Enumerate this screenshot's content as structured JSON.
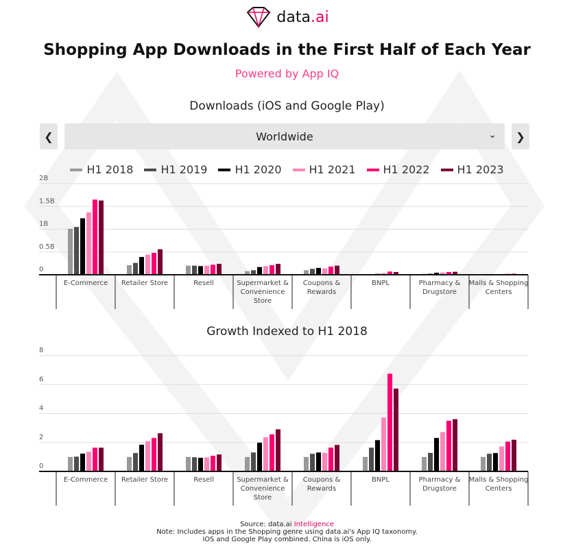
{
  "brand": {
    "name": "data",
    "suffix": ".ai"
  },
  "title": "Shopping App Downloads in the First Half of Each Year",
  "subtitle": "Powered by App IQ",
  "selector": {
    "value": "Worldwide",
    "prev_icon": "chevron-left-icon",
    "next_icon": "chevron-right-icon"
  },
  "legend": [
    {
      "name": "H1 2018",
      "color": "#999999"
    },
    {
      "name": "H1 2019",
      "color": "#4d4d4d"
    },
    {
      "name": "H1 2020",
      "color": "#000000"
    },
    {
      "name": "H1 2021",
      "color": "#ff85b8"
    },
    {
      "name": "H1 2022",
      "color": "#ff0073"
    },
    {
      "name": "H1 2023",
      "color": "#7a0034"
    }
  ],
  "chart_data": [
    {
      "type": "bar",
      "title": "Downloads (iOS and Google Play)",
      "categories": [
        "E-Commerce",
        "Retailer Store",
        "Resell",
        "Supermarket & Convenience Store",
        "Coupons & Rewards",
        "BNPL",
        "Pharmacy & Drugstore",
        "Malls & Shopping Centers"
      ],
      "yticks": [
        "0",
        "0.5B",
        "1B",
        "1.5B",
        "2B"
      ],
      "ylim": [
        0,
        2
      ],
      "yunit": "B",
      "grid": true,
      "series": [
        {
          "name": "H1 2018",
          "values": [
            1.01,
            0.21,
            0.2,
            0.08,
            0.1,
            0.01,
            0.02,
            0.01
          ]
        },
        {
          "name": "H1 2019",
          "values": [
            1.05,
            0.26,
            0.2,
            0.1,
            0.13,
            0.015,
            0.025,
            0.012
          ]
        },
        {
          "name": "H1 2020",
          "values": [
            1.24,
            0.39,
            0.19,
            0.17,
            0.15,
            0.02,
            0.045,
            0.013
          ]
        },
        {
          "name": "H1 2021",
          "values": [
            1.37,
            0.44,
            0.2,
            0.19,
            0.14,
            0.035,
            0.05,
            0.017
          ]
        },
        {
          "name": "H1 2022",
          "values": [
            1.65,
            0.48,
            0.22,
            0.21,
            0.18,
            0.07,
            0.06,
            0.02
          ]
        },
        {
          "name": "H1 2023",
          "values": [
            1.63,
            0.56,
            0.24,
            0.24,
            0.2,
            0.06,
            0.065,
            0.022
          ]
        }
      ]
    },
    {
      "type": "bar",
      "title": "Growth Indexed to H1 2018",
      "categories": [
        "E-Commerce",
        "Retailer Store",
        "Resell",
        "Supermarket & Convenience Store",
        "Coupons & Rewards",
        "BNPL",
        "Pharmacy & Drugstore",
        "Malls & Shopping Centers"
      ],
      "yticks": [
        "0",
        "2",
        "4",
        "6",
        "8"
      ],
      "ylim": [
        0,
        8
      ],
      "grid": true,
      "series": [
        {
          "name": "H1 2018",
          "values": [
            1.0,
            1.0,
            1.0,
            1.0,
            1.0,
            1.0,
            1.0,
            1.0
          ]
        },
        {
          "name": "H1 2019",
          "values": [
            1.02,
            1.27,
            0.98,
            1.31,
            1.22,
            1.64,
            1.28,
            1.22
          ]
        },
        {
          "name": "H1 2020",
          "values": [
            1.23,
            1.84,
            0.94,
            1.98,
            1.31,
            2.16,
            2.31,
            1.27
          ]
        },
        {
          "name": "H1 2021",
          "values": [
            1.36,
            2.08,
            0.97,
            2.36,
            1.28,
            3.72,
            2.72,
            1.72
          ]
        },
        {
          "name": "H1 2022",
          "values": [
            1.64,
            2.31,
            1.08,
            2.56,
            1.64,
            6.75,
            3.5,
            2.06
          ]
        },
        {
          "name": "H1 2023",
          "values": [
            1.64,
            2.64,
            1.17,
            2.91,
            1.83,
            5.72,
            3.61,
            2.19
          ]
        }
      ]
    }
  ],
  "footer": {
    "source_prefix": "Source: data.ai ",
    "source_link": "Intelligence",
    "note1": "Note: Includes apps in the Shopping genre using data.ai's App IQ taxonomy.",
    "note2": "iOS and Google Play combined. China is iOS only."
  }
}
